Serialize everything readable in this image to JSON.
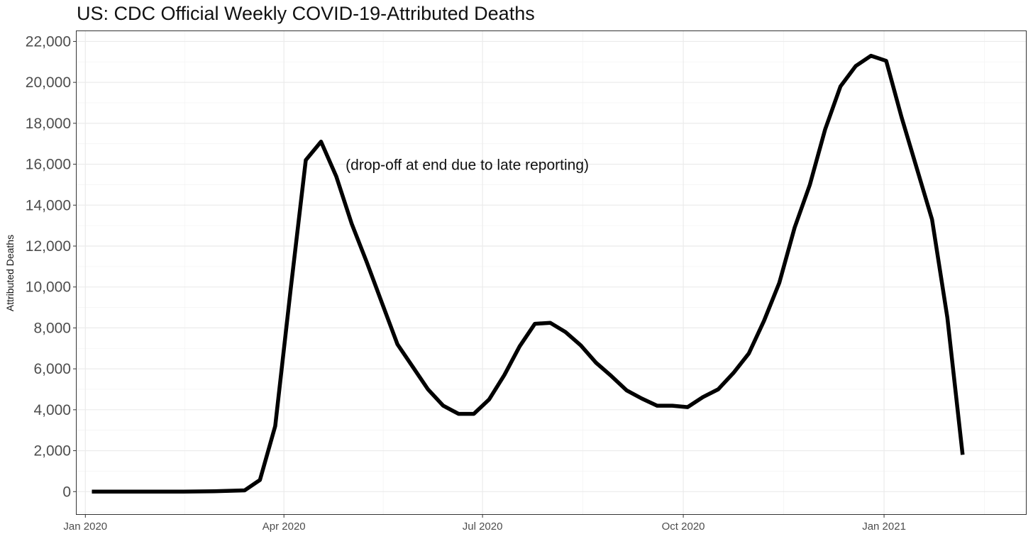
{
  "chart_data": {
    "type": "line",
    "title": "US: CDC Official Weekly COVID-19-Attributed Deaths",
    "xlabel": "",
    "ylabel": "Attributed Deaths",
    "annotation": {
      "text": "(drop-off at end due to late reporting)",
      "x": "2020-06-24",
      "y": 16000
    },
    "x_ticks": [
      {
        "date": "2020-01-01",
        "label": "Jan 2020"
      },
      {
        "date": "2020-04-01",
        "label": "Apr 2020"
      },
      {
        "date": "2020-07-01",
        "label": "Jul 2020"
      },
      {
        "date": "2020-10-01",
        "label": "Oct 2020"
      },
      {
        "date": "2021-01-01",
        "label": "Jan 2021"
      }
    ],
    "xlim": [
      "2019-12-28",
      "2021-03-07"
    ],
    "y_ticks": [
      0,
      2000,
      4000,
      6000,
      8000,
      10000,
      12000,
      14000,
      16000,
      18000,
      20000,
      22000
    ],
    "y_tick_labels": [
      "0",
      "2,000",
      "4,000",
      "6,000",
      "8,000",
      "10,000",
      "12,000",
      "14,000",
      "16,000",
      "18,000",
      "20,000",
      "22,000"
    ],
    "ylim": [
      -1100,
      22500
    ],
    "grid": true,
    "line_color": "#000000",
    "series": [
      {
        "dates": [
          "2020-01-04",
          "2020-01-11",
          "2020-01-18",
          "2020-01-25",
          "2020-02-01",
          "2020-02-08",
          "2020-02-15",
          "2020-02-22",
          "2020-02-29",
          "2020-03-07",
          "2020-03-14",
          "2020-03-21",
          "2020-03-28",
          "2020-04-04",
          "2020-04-11",
          "2020-04-18",
          "2020-04-25",
          "2020-05-02",
          "2020-05-09",
          "2020-05-16",
          "2020-05-23",
          "2020-05-30",
          "2020-06-06",
          "2020-06-13",
          "2020-06-20",
          "2020-06-27",
          "2020-07-04",
          "2020-07-11",
          "2020-07-18",
          "2020-07-25",
          "2020-08-01",
          "2020-08-08",
          "2020-08-15",
          "2020-08-22",
          "2020-08-29",
          "2020-09-05",
          "2020-09-12",
          "2020-09-19",
          "2020-09-26",
          "2020-10-03",
          "2020-10-10",
          "2020-10-17",
          "2020-10-24",
          "2020-10-31",
          "2020-11-07",
          "2020-11-14",
          "2020-11-21",
          "2020-11-28",
          "2020-12-05",
          "2020-12-12",
          "2020-12-19",
          "2020-12-26",
          "2021-01-02",
          "2021-01-09",
          "2021-01-16",
          "2021-01-23",
          "2021-01-30",
          "2021-02-06"
        ],
        "values": [
          0,
          0,
          0,
          0,
          0,
          0,
          0,
          10,
          20,
          40,
          60,
          570,
          3200,
          9800,
          16200,
          17100,
          15400,
          13100,
          11200,
          9200,
          7200,
          6100,
          5000,
          4200,
          3800,
          3800,
          4500,
          5700,
          7100,
          8200,
          8250,
          7800,
          7150,
          6300,
          5650,
          4950,
          4550,
          4200,
          4200,
          4130,
          4620,
          5000,
          5800,
          6750,
          8350,
          10200,
          12900,
          15000,
          17700,
          19800,
          20800,
          21300,
          21050,
          18300,
          15800,
          13300,
          8500,
          1800
        ]
      }
    ]
  }
}
